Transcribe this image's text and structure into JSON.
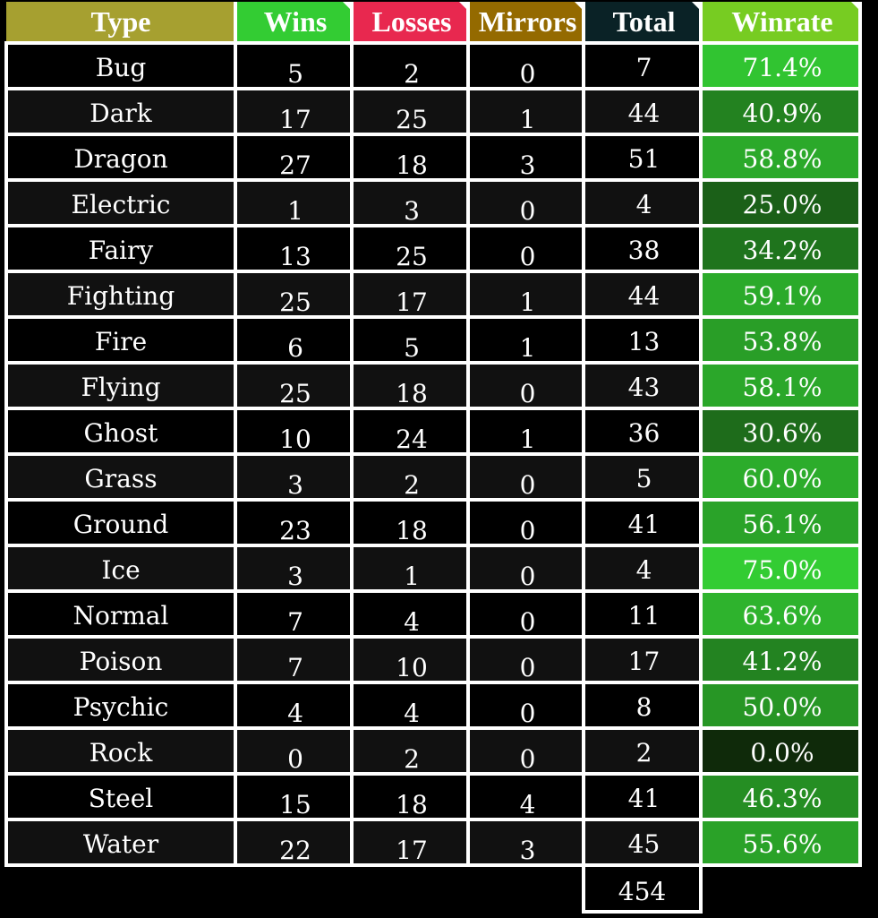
{
  "chart_data": {
    "type": "table",
    "columns": [
      "Type",
      "Wins",
      "Losses",
      "Mirrors",
      "Total",
      "Winrate"
    ],
    "header_colors": [
      "#a6a030",
      "#33cc33",
      "#e8284f",
      "#946a00",
      "#0a2226",
      "#77cc22"
    ],
    "rows": [
      {
        "type": "Bug",
        "wins": "5",
        "losses": "2",
        "mirrors": "0",
        "total": "7",
        "winrate": "71.4%",
        "rate": 0.714
      },
      {
        "type": "Dark",
        "wins": "17",
        "losses": "25",
        "mirrors": "1",
        "total": "44",
        "winrate": "40.9%",
        "rate": 0.409
      },
      {
        "type": "Dragon",
        "wins": "27",
        "losses": "18",
        "mirrors": "3",
        "total": "51",
        "winrate": "58.8%",
        "rate": 0.588
      },
      {
        "type": "Electric",
        "wins": "1",
        "losses": "3",
        "mirrors": "0",
        "total": "4",
        "winrate": "25.0%",
        "rate": 0.25
      },
      {
        "type": "Fairy",
        "wins": "13",
        "losses": "25",
        "mirrors": "0",
        "total": "38",
        "winrate": "34.2%",
        "rate": 0.342
      },
      {
        "type": "Fighting",
        "wins": "25",
        "losses": "17",
        "mirrors": "1",
        "total": "44",
        "winrate": "59.1%",
        "rate": 0.591
      },
      {
        "type": "Fire",
        "wins": "6",
        "losses": "5",
        "mirrors": "1",
        "total": "13",
        "winrate": "53.8%",
        "rate": 0.538
      },
      {
        "type": "Flying",
        "wins": "25",
        "losses": "18",
        "mirrors": "0",
        "total": "43",
        "winrate": "58.1%",
        "rate": 0.581
      },
      {
        "type": "Ghost",
        "wins": "10",
        "losses": "24",
        "mirrors": "1",
        "total": "36",
        "winrate": "30.6%",
        "rate": 0.306
      },
      {
        "type": "Grass",
        "wins": "3",
        "losses": "2",
        "mirrors": "0",
        "total": "5",
        "winrate": "60.0%",
        "rate": 0.6
      },
      {
        "type": "Ground",
        "wins": "23",
        "losses": "18",
        "mirrors": "0",
        "total": "41",
        "winrate": "56.1%",
        "rate": 0.561
      },
      {
        "type": "Ice",
        "wins": "3",
        "losses": "1",
        "mirrors": "0",
        "total": "4",
        "winrate": "75.0%",
        "rate": 0.75
      },
      {
        "type": "Normal",
        "wins": "7",
        "losses": "4",
        "mirrors": "0",
        "total": "11",
        "winrate": "63.6%",
        "rate": 0.636
      },
      {
        "type": "Poison",
        "wins": "7",
        "losses": "10",
        "mirrors": "0",
        "total": "17",
        "winrate": "41.2%",
        "rate": 0.412
      },
      {
        "type": "Psychic",
        "wins": "4",
        "losses": "4",
        "mirrors": "0",
        "total": "8",
        "winrate": "50.0%",
        "rate": 0.5
      },
      {
        "type": "Rock",
        "wins": "0",
        "losses": "2",
        "mirrors": "0",
        "total": "2",
        "winrate": "0.0%",
        "rate": 0.0
      },
      {
        "type": "Steel",
        "wins": "15",
        "losses": "18",
        "mirrors": "4",
        "total": "41",
        "winrate": "46.3%",
        "rate": 0.463
      },
      {
        "type": "Water",
        "wins": "22",
        "losses": "17",
        "mirrors": "3",
        "total": "45",
        "winrate": "55.6%",
        "rate": 0.556
      }
    ],
    "grand_total": "454",
    "row_colors": [
      "#000000",
      "#111111"
    ],
    "winrate_color_low": "#0f2a0a",
    "winrate_color_high": "#33cc33"
  }
}
